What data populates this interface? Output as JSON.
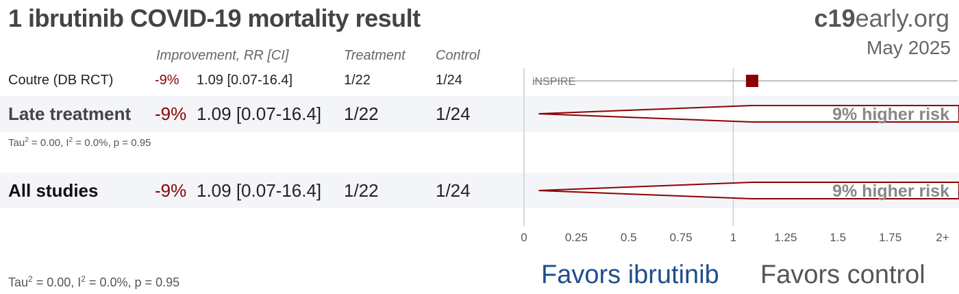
{
  "header": {
    "title": "1 ibrutinib COVID-19 mortality result",
    "brand_bold": "c19",
    "brand_rest": "early.org",
    "date": "May 2025"
  },
  "columns": {
    "improvement": "Improvement, RR [CI]",
    "treatment": "Treatment",
    "control": "Control"
  },
  "study": {
    "name": "Coutre (DB RCT)",
    "improvement": "-9%",
    "rr_ci": "1.09 [0.07-16.4]",
    "treatment": "1/22",
    "control": "1/24",
    "trial_label": "iNSPIRE"
  },
  "late": {
    "name": "Late treatment",
    "improvement": "-9%",
    "rr_ci": "1.09 [0.07-16.4]",
    "treatment": "1/22",
    "control": "1/24",
    "risk_label": "9% higher risk",
    "het_tau": "0.00",
    "het_i": "0.0%",
    "het_p": "0.95"
  },
  "all": {
    "name": "All studies",
    "improvement": "-9%",
    "rr_ci": "1.09 [0.07-16.4]",
    "treatment": "1/22",
    "control": "1/24",
    "risk_label": "9% higher risk",
    "het_tau": "0.00",
    "het_i": "0.0%",
    "het_p": "0.95"
  },
  "favors": {
    "left": "Favors ibrutinib",
    "right": "Favors control"
  },
  "chart_data": {
    "type": "forest",
    "x_axis": {
      "ticks": [
        0,
        0.25,
        0.5,
        0.75,
        1,
        1.25,
        1.5,
        1.75,
        2
      ],
      "tick_labels": [
        "0",
        "0.25",
        "0.5",
        "0.75",
        "1",
        "1.25",
        "1.5",
        "1.75",
        "2+"
      ],
      "range": [
        0,
        2
      ]
    },
    "rows": [
      {
        "label": "Coutre (DB RCT)",
        "kind": "study",
        "rr": 1.09,
        "ci_low": 0.07,
        "ci_high": 16.4
      },
      {
        "label": "Late treatment",
        "kind": "summary",
        "rr": 1.09,
        "ci_low": 0.07,
        "ci_high": 16.4
      },
      {
        "label": "All studies",
        "kind": "summary",
        "rr": 1.09,
        "ci_low": 0.07,
        "ci_high": 16.4
      }
    ],
    "colors": {
      "estimate": "#8b0000",
      "axis": "#cccccc",
      "favors_treatment": "#1f4e8c",
      "favors_control": "#555555"
    }
  }
}
